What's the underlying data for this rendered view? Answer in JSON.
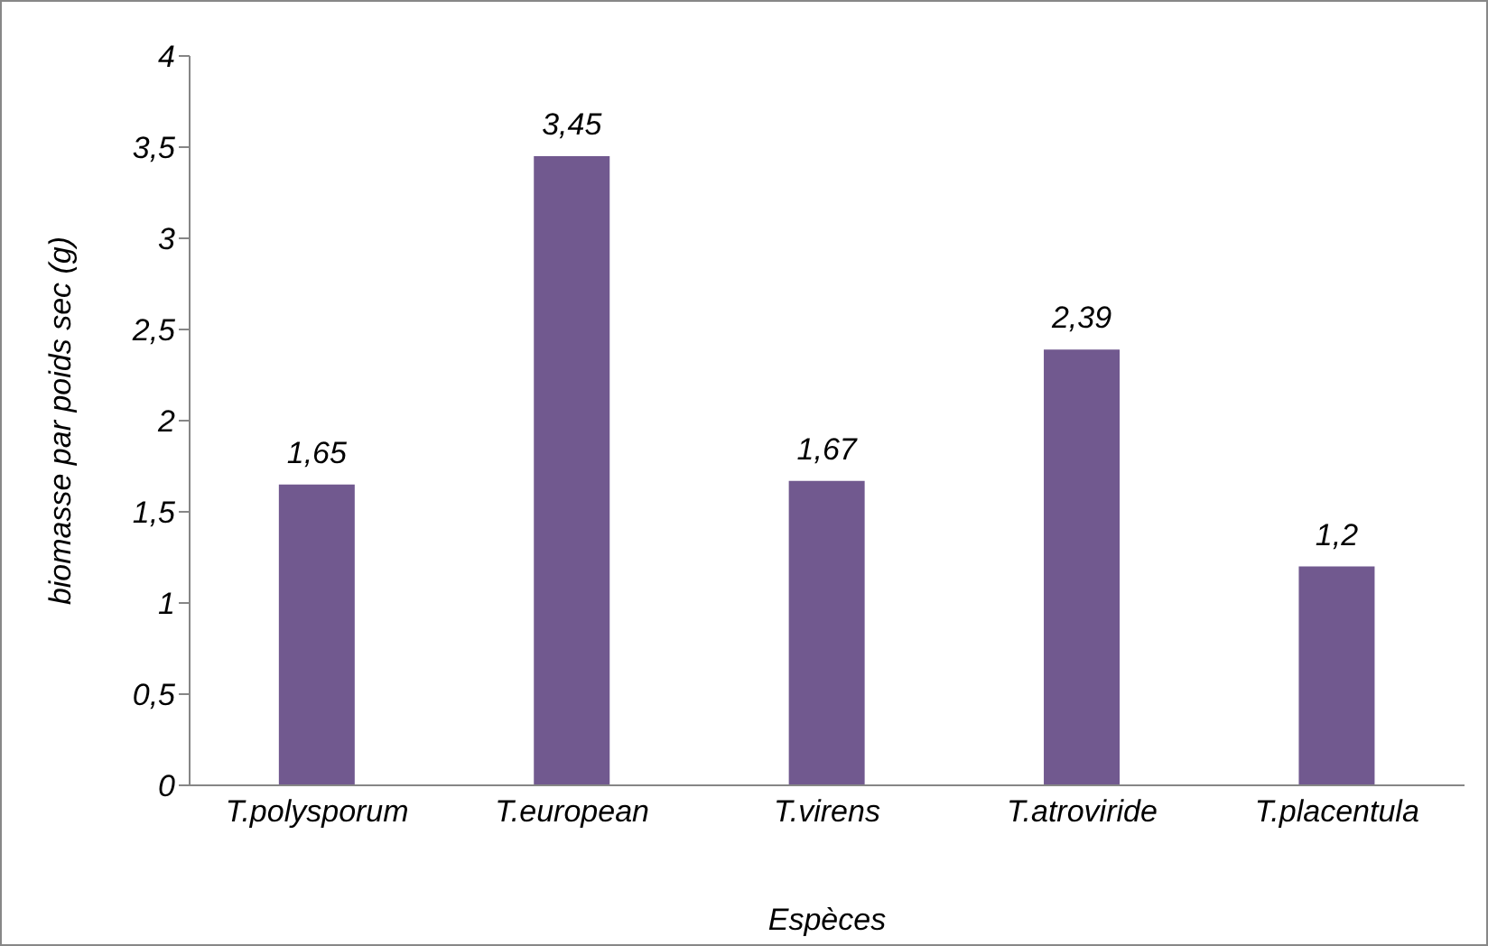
{
  "chart_data": {
    "type": "bar",
    "xlabel": "Espèces",
    "ylabel": "biomasse par poids sec (g)",
    "categories": [
      "T.polysporum",
      "T.european",
      "T.virens",
      "T.atroviride",
      "T.placentula"
    ],
    "values": [
      1.65,
      3.45,
      1.67,
      2.39,
      1.2
    ],
    "value_labels": [
      "1,65",
      "3,45",
      "1,67",
      "2,39",
      "1,2"
    ],
    "color": "#71598f",
    "ylim": [
      0,
      4
    ],
    "yticks": [
      0,
      {
        "value": 0.5,
        "label": "0,5"
      },
      1,
      {
        "value": 1.5,
        "label": "1,5"
      },
      2,
      {
        "value": 2.5,
        "label": "2,5"
      },
      3,
      {
        "value": 3.5,
        "label": "3,5"
      },
      4
    ],
    "grid": false,
    "legend": false
  }
}
